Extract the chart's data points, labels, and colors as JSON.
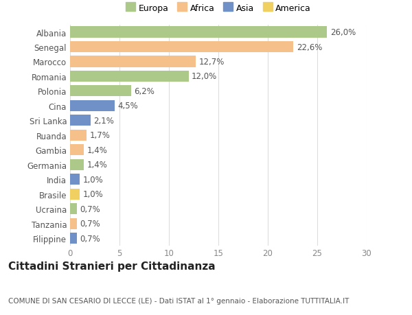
{
  "countries": [
    "Filippine",
    "Tanzania",
    "Ucraina",
    "Brasile",
    "India",
    "Germania",
    "Gambia",
    "Ruanda",
    "Sri Lanka",
    "Cina",
    "Polonia",
    "Romania",
    "Marocco",
    "Senegal",
    "Albania"
  ],
  "values": [
    0.7,
    0.7,
    0.7,
    1.0,
    1.0,
    1.4,
    1.4,
    1.7,
    2.1,
    4.5,
    6.2,
    12.0,
    12.7,
    22.6,
    26.0
  ],
  "labels": [
    "0,7%",
    "0,7%",
    "0,7%",
    "1,0%",
    "1,0%",
    "1,4%",
    "1,4%",
    "1,7%",
    "2,1%",
    "4,5%",
    "6,2%",
    "12,0%",
    "12,7%",
    "22,6%",
    "26,0%"
  ],
  "continents": [
    "Asia",
    "Africa",
    "Europa",
    "America",
    "Asia",
    "Europa",
    "Africa",
    "Africa",
    "Asia",
    "Asia",
    "Europa",
    "Europa",
    "Africa",
    "Africa",
    "Europa"
  ],
  "continent_colors": {
    "Europa": "#adc98a",
    "Africa": "#f5c08a",
    "Asia": "#7090c8",
    "America": "#f0d060"
  },
  "legend_order": [
    "Europa",
    "Africa",
    "Asia",
    "America"
  ],
  "title": "Cittadini Stranieri per Cittadinanza",
  "subtitle": "COMUNE DI SAN CESARIO DI LECCE (LE) - Dati ISTAT al 1° gennaio - Elaborazione TUTTITALIA.IT",
  "xlim": [
    0,
    30
  ],
  "xticks": [
    0,
    5,
    10,
    15,
    20,
    25,
    30
  ],
  "background_color": "#ffffff",
  "grid_color": "#dddddd",
  "bar_height": 0.75,
  "label_fontsize": 8.5,
  "tick_fontsize": 8.5,
  "title_fontsize": 11,
  "subtitle_fontsize": 7.5
}
